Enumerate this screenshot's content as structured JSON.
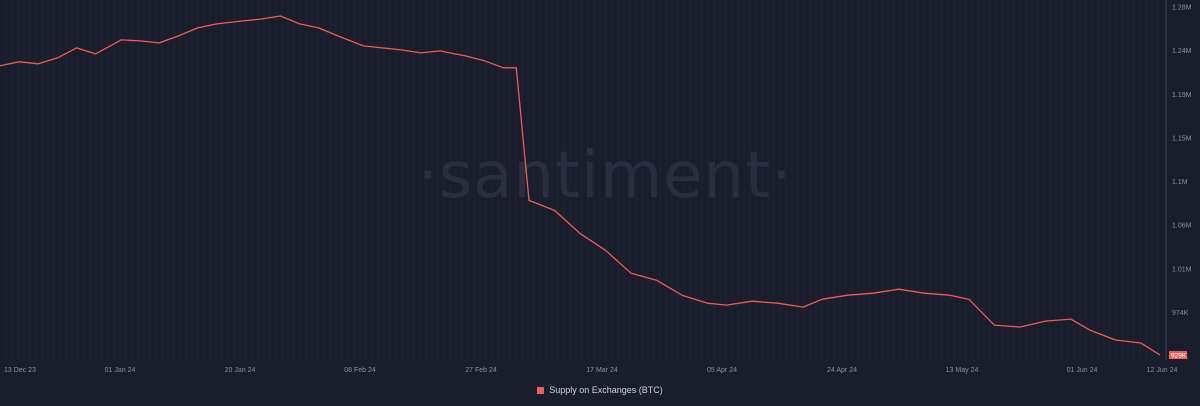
{
  "watermark": "·santiment·",
  "legend": {
    "label": "Supply on Exchanges (BTC)"
  },
  "colors": {
    "background": "#1a1d2b",
    "line": "#e85d5d",
    "grid": "#24283a",
    "last_badge": "#e85d5d"
  },
  "chart_data": {
    "type": "line",
    "title": "",
    "xlabel": "",
    "ylabel": "",
    "x_ticks": [
      "13 Dec 23",
      "01 Jan 24",
      "20 Jan 24",
      "08 Feb 24",
      "27 Feb 24",
      "17 Mar 24",
      "05 Apr 24",
      "24 Apr 24",
      "13 May 24",
      "01 Jun 24",
      "12 Jun 24"
    ],
    "y_ticks": [
      "1.28M",
      "1.24M",
      "1.19M",
      "1.15M",
      "1.1M",
      "1.06M",
      "1.01M",
      "974K",
      "929K"
    ],
    "ylim": [
      929000,
      1280000
    ],
    "last_value_label": "929K",
    "series": [
      {
        "name": "Supply on Exchanges (BTC)",
        "x": [
          "2023-12-13",
          "2023-12-16",
          "2023-12-19",
          "2023-12-22",
          "2023-12-25",
          "2023-12-28",
          "2024-01-01",
          "2024-01-04",
          "2024-01-07",
          "2024-01-10",
          "2024-01-13",
          "2024-01-16",
          "2024-01-20",
          "2024-01-23",
          "2024-01-26",
          "2024-01-29",
          "2024-02-01",
          "2024-02-04",
          "2024-02-08",
          "2024-02-11",
          "2024-02-14",
          "2024-02-17",
          "2024-02-20",
          "2024-02-24",
          "2024-02-27",
          "2024-03-01",
          "2024-03-03",
          "2024-03-05",
          "2024-03-09",
          "2024-03-13",
          "2024-03-17",
          "2024-03-21",
          "2024-03-25",
          "2024-03-29",
          "2024-04-02",
          "2024-04-05",
          "2024-04-09",
          "2024-04-13",
          "2024-04-17",
          "2024-04-20",
          "2024-04-24",
          "2024-04-28",
          "2024-05-02",
          "2024-05-06",
          "2024-05-10",
          "2024-05-13",
          "2024-05-17",
          "2024-05-21",
          "2024-05-25",
          "2024-05-29",
          "2024-06-01",
          "2024-06-05",
          "2024-06-09",
          "2024-06-12"
        ],
        "values": [
          1220000,
          1224000,
          1222000,
          1228000,
          1238000,
          1232000,
          1246000,
          1245000,
          1243000,
          1250000,
          1258000,
          1262000,
          1265000,
          1267000,
          1270000,
          1262000,
          1258000,
          1250000,
          1240000,
          1238000,
          1236000,
          1233000,
          1235000,
          1230000,
          1225000,
          1218000,
          1218000,
          1085000,
          1075000,
          1052000,
          1035000,
          1012000,
          1005000,
          990000,
          982000,
          980000,
          984000,
          982000,
          978000,
          986000,
          990000,
          992000,
          996000,
          992000,
          990000,
          986000,
          960000,
          958000,
          964000,
          966000,
          955000,
          945000,
          942000,
          930000
        ]
      }
    ]
  }
}
